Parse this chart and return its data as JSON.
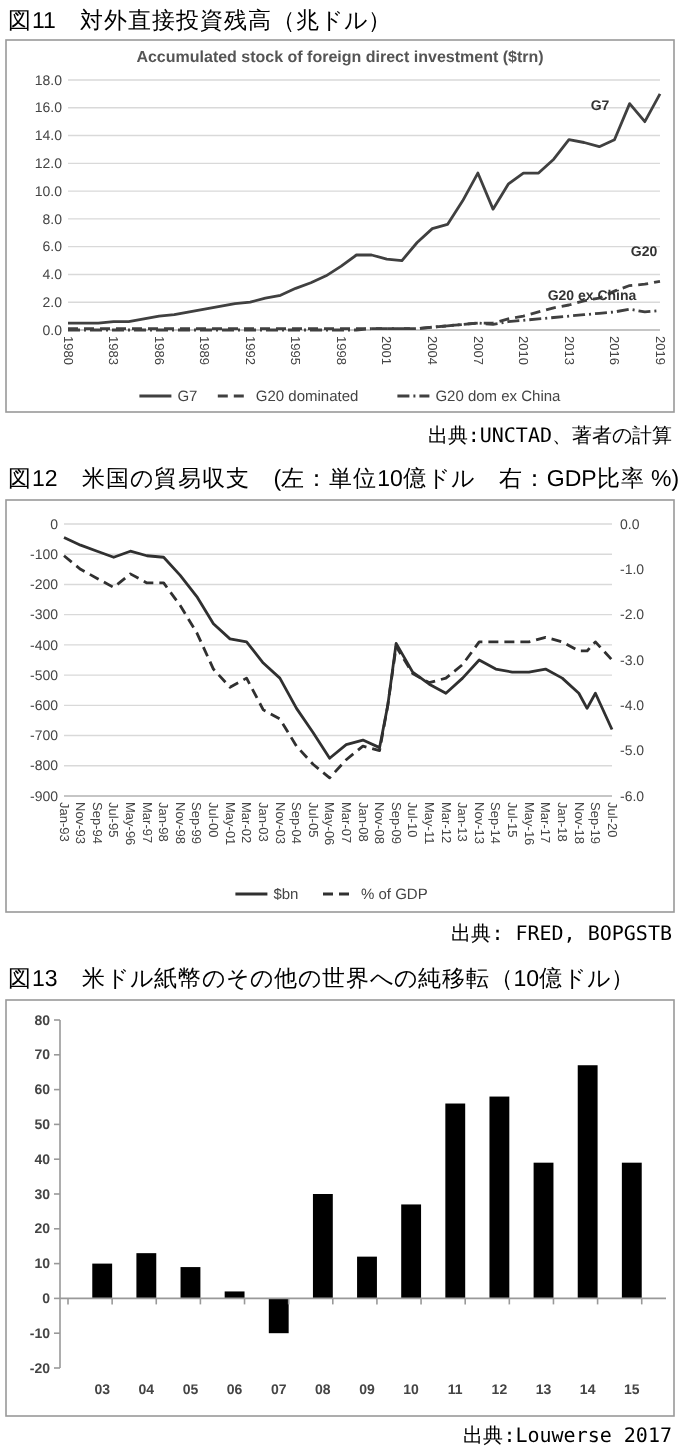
{
  "chart_data": [
    {
      "type": "line",
      "title": "図11　対外直接投資残高（兆ドル）",
      "subtitle": "Accumulated stock of foreign direct investment ($trn)",
      "x": [
        1980,
        1981,
        1982,
        1983,
        1984,
        1985,
        1986,
        1987,
        1988,
        1989,
        1990,
        1991,
        1992,
        1993,
        1994,
        1995,
        1996,
        1997,
        1998,
        1999,
        2000,
        2001,
        2002,
        2003,
        2004,
        2005,
        2006,
        2007,
        2008,
        2009,
        2010,
        2011,
        2012,
        2013,
        2014,
        2015,
        2016,
        2017,
        2018,
        2019
      ],
      "xlim": [
        1980,
        2019
      ],
      "xticks": [
        1980,
        1983,
        1986,
        1989,
        1992,
        1995,
        1998,
        2001,
        2004,
        2007,
        2010,
        2013,
        2016,
        2019
      ],
      "ylim": [
        0,
        18
      ],
      "yticks": [
        {
          "value": 0,
          "label": "0.0"
        },
        {
          "value": 2,
          "label": "2.0"
        },
        {
          "value": 4,
          "label": "4.0"
        },
        {
          "value": 6,
          "label": "6.0"
        },
        {
          "value": 8,
          "label": "8.0"
        },
        {
          "value": 10,
          "label": "10.0"
        },
        {
          "value": 12,
          "label": "12.0"
        },
        {
          "value": 14,
          "label": "14.0"
        },
        {
          "value": 16,
          "label": "16.0"
        },
        {
          "value": 18,
          "label": "18.0"
        }
      ],
      "grid": "y",
      "legend": "bottom",
      "marker": "none",
      "series": [
        {
          "name": "G7",
          "color": "#404040",
          "line_style": "solid",
          "values": [
            0.5,
            0.5,
            0.5,
            0.6,
            0.6,
            0.8,
            1.0,
            1.1,
            1.3,
            1.5,
            1.7,
            1.9,
            2.0,
            2.3,
            2.5,
            3.0,
            3.4,
            3.9,
            4.6,
            5.4,
            5.4,
            5.1,
            5.0,
            6.3,
            7.3,
            7.6,
            9.3,
            11.3,
            8.7,
            10.5,
            11.3,
            11.3,
            12.3,
            13.7,
            13.5,
            13.2,
            13.7,
            16.3,
            15.0,
            17.0
          ]
        },
        {
          "name": "G20 dominated",
          "color": "#404040",
          "line_style": "dashed",
          "values": [
            0.1,
            0.1,
            0.1,
            0.1,
            0.1,
            0.1,
            0.1,
            0.1,
            0.1,
            0.1,
            0.1,
            0.1,
            0.1,
            0.1,
            0.1,
            0.1,
            0.1,
            0.1,
            0.1,
            0.1,
            0.1,
            0.1,
            0.1,
            0.1,
            0.2,
            0.3,
            0.4,
            0.5,
            0.5,
            0.8,
            1.0,
            1.3,
            1.6,
            1.8,
            2.1,
            2.3,
            2.8,
            3.2,
            3.3,
            3.5
          ]
        },
        {
          "name": "G20 dom ex China",
          "color": "#404040",
          "line_style": "dashdot",
          "values": [
            0.0,
            0.0,
            0.0,
            0.0,
            0.0,
            0.0,
            0.0,
            0.0,
            0.0,
            0.0,
            0.0,
            0.0,
            0.0,
            0.0,
            0.0,
            0.0,
            0.0,
            0.0,
            0.0,
            0.0,
            0.1,
            0.1,
            0.1,
            0.1,
            0.2,
            0.3,
            0.4,
            0.5,
            0.4,
            0.6,
            0.7,
            0.8,
            0.9,
            1.0,
            1.1,
            1.2,
            1.3,
            1.5,
            1.3,
            1.4
          ]
        }
      ],
      "annotations": [
        "G7",
        "G20",
        "G20 ex China",
        "出典:UNCTAD、著者の計算"
      ]
    },
    {
      "type": "line",
      "title": "図12　米国の貿易収支　(左：単位10億ドル　右：GDP比率 %)",
      "x": [
        "1993-01",
        "1993-11",
        "1994-09",
        "1995-07",
        "1996-05",
        "1997-03",
        "1998-01",
        "1998-11",
        "1999-09",
        "2000-07",
        "2001-05",
        "2002-03",
        "2003-01",
        "2003-11",
        "2004-09",
        "2005-07",
        "2006-05",
        "2007-03",
        "2008-01",
        "2008-11",
        "2009-04",
        "2009-09",
        "2010-07",
        "2011-05",
        "2012-03",
        "2013-01",
        "2013-11",
        "2014-09",
        "2015-07",
        "2016-05",
        "2017-03",
        "2018-01",
        "2018-11",
        "2019-04",
        "2019-09",
        "2020-07"
      ],
      "xlim": [
        "1993-01",
        "2020-07"
      ],
      "xticks": [
        {
          "value": "1993-01",
          "label": "Jan-93"
        },
        {
          "value": "1993-11",
          "label": "Nov-93"
        },
        {
          "value": "1994-09",
          "label": "Sep-94"
        },
        {
          "value": "1995-07",
          "label": "Jul-95"
        },
        {
          "value": "1996-05",
          "label": "May-96"
        },
        {
          "value": "1997-03",
          "label": "Mar-97"
        },
        {
          "value": "1998-01",
          "label": "Jan-98"
        },
        {
          "value": "1998-11",
          "label": "Nov-98"
        },
        {
          "value": "1999-09",
          "label": "Sep-99"
        },
        {
          "value": "2000-07",
          "label": "Jul-00"
        },
        {
          "value": "2001-05",
          "label": "May-01"
        },
        {
          "value": "2002-03",
          "label": "Mar-02"
        },
        {
          "value": "2003-01",
          "label": "Jan-03"
        },
        {
          "value": "2003-11",
          "label": "Nov-03"
        },
        {
          "value": "2004-09",
          "label": "Sep-04"
        },
        {
          "value": "2005-07",
          "label": "Jul-05"
        },
        {
          "value": "2006-05",
          "label": "May-06"
        },
        {
          "value": "2007-03",
          "label": "Mar-07"
        },
        {
          "value": "2008-01",
          "label": "Jan-08"
        },
        {
          "value": "2008-11",
          "label": "Nov-08"
        },
        {
          "value": "2009-09",
          "label": "Sep-09"
        },
        {
          "value": "2010-07",
          "label": "Jul-10"
        },
        {
          "value": "2011-05",
          "label": "May-11"
        },
        {
          "value": "2012-03",
          "label": "Mar-12"
        },
        {
          "value": "2013-01",
          "label": "Jan-13"
        },
        {
          "value": "2013-11",
          "label": "Nov-13"
        },
        {
          "value": "2014-09",
          "label": "Sep-14"
        },
        {
          "value": "2015-07",
          "label": "Jul-15"
        },
        {
          "value": "2016-05",
          "label": "May-16"
        },
        {
          "value": "2017-03",
          "label": "Mar-17"
        },
        {
          "value": "2018-01",
          "label": "Jan-18"
        },
        {
          "value": "2018-11",
          "label": "Nov-18"
        },
        {
          "value": "2019-09",
          "label": "Sep-19"
        },
        {
          "value": "2020-07",
          "label": "Jul-20"
        }
      ],
      "ylim": [
        -900,
        0
      ],
      "yticks": [
        0,
        -100,
        -200,
        -300,
        -400,
        -500,
        -600,
        -700,
        -800,
        -900
      ],
      "y2lim": [
        -6,
        0
      ],
      "y2ticks": [
        {
          "value": 0,
          "label": "0.0"
        },
        {
          "value": -1,
          "label": "-1.0"
        },
        {
          "value": -2,
          "label": "-2.0"
        },
        {
          "value": -3,
          "label": "-3.0"
        },
        {
          "value": -4,
          "label": "-4.0"
        },
        {
          "value": -5,
          "label": "-5.0"
        },
        {
          "value": -6,
          "label": "-6.0"
        }
      ],
      "grid": "y",
      "legend": "bottom",
      "marker": "none",
      "series": [
        {
          "name": "$bn",
          "color": "#303030",
          "line_style": "solid",
          "values": [
            -45,
            -70,
            -90,
            -110,
            -90,
            -105,
            -110,
            -170,
            -240,
            -330,
            -380,
            -390,
            -460,
            -510,
            -610,
            -690,
            -775,
            -730,
            -715,
            -740,
            -600,
            -395,
            -490,
            -530,
            -560,
            -510,
            -450,
            -480,
            -490,
            -490,
            -480,
            -510,
            -560,
            -610,
            -560,
            -680
          ]
        },
        {
          "name": "% of GDP",
          "color": "#303030",
          "line_style": "dashed",
          "axis": "y2",
          "values": [
            -0.7,
            -1.0,
            -1.2,
            -1.4,
            -1.1,
            -1.3,
            -1.3,
            -1.8,
            -2.4,
            -3.2,
            -3.6,
            -3.4,
            -4.1,
            -4.3,
            -4.9,
            -5.3,
            -5.6,
            -5.2,
            -4.9,
            -5.0,
            -4.0,
            -2.7,
            -3.3,
            -3.5,
            -3.4,
            -3.1,
            -2.6,
            -2.6,
            -2.6,
            -2.6,
            -2.5,
            -2.6,
            -2.8,
            -2.8,
            -2.6,
            -3.0
          ]
        }
      ],
      "annotations": [
        "出典: FRED, BOPGSTB"
      ]
    },
    {
      "type": "bar",
      "title": "図13　米ドル紙幣のその他の世界への純移転（10億ドル）",
      "categories": [
        "03",
        "04",
        "05",
        "06",
        "07",
        "08",
        "09",
        "10",
        "11",
        "12",
        "13",
        "14",
        "15"
      ],
      "values": [
        10,
        13,
        9,
        2,
        -10,
        30,
        12,
        27,
        56,
        58,
        39,
        67,
        39
      ],
      "color": "#000000",
      "ylim": [
        -20,
        80
      ],
      "yticks": [
        -20,
        -10,
        0,
        10,
        20,
        30,
        40,
        50,
        60,
        70,
        80
      ],
      "annotations": [
        "出典:Louwerse 2017"
      ]
    }
  ]
}
